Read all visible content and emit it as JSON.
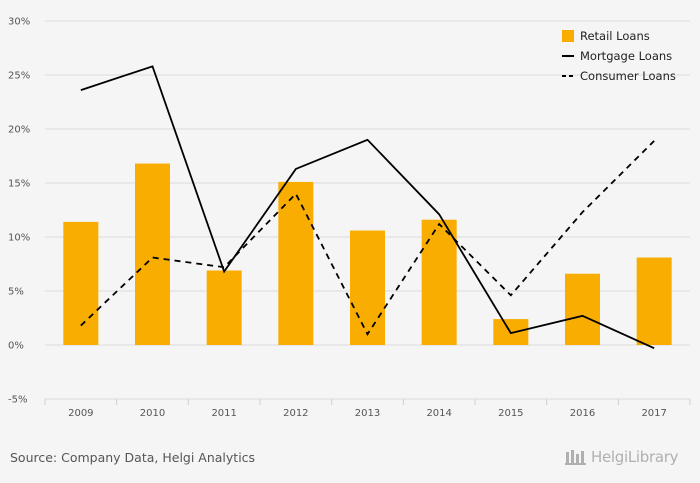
{
  "chart_data": {
    "type": "bar",
    "categories": [
      "2009",
      "2010",
      "2011",
      "2012",
      "2013",
      "2014",
      "2015",
      "2016",
      "2017"
    ],
    "series": [
      {
        "name": "Retail Loans",
        "type": "bar",
        "values": [
          11.4,
          16.8,
          6.9,
          15.1,
          10.6,
          11.6,
          2.4,
          6.6,
          8.1
        ]
      },
      {
        "name": "Mortgage Loans",
        "type": "line",
        "values": [
          23.6,
          25.8,
          6.8,
          16.3,
          19.0,
          12.1,
          1.1,
          2.7,
          -0.3
        ]
      },
      {
        "name": "Consumer Loans",
        "type": "line-dashed",
        "values": [
          1.8,
          8.1,
          7.2,
          14.0,
          1.0,
          11.2,
          4.6,
          12.3,
          18.9
        ]
      }
    ],
    "ylim": [
      -5,
      30
    ],
    "yticks": [
      "-5%",
      "0%",
      "5%",
      "10%",
      "15%",
      "20%",
      "25%",
      "30%"
    ],
    "grid": true,
    "legend_position": "top-right",
    "colors": {
      "bars": "#f9ad00",
      "mortgage": "#000000",
      "consumer": "#000000"
    }
  },
  "footer": {
    "source": "Source: Company Data, Helgi Analytics",
    "brand": "HelgiLibrary"
  }
}
